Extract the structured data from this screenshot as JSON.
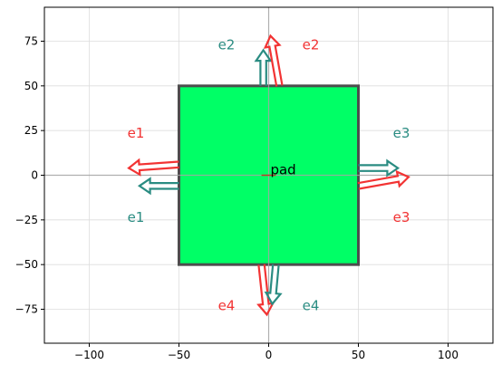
{
  "chart_data": {
    "type": "diagram-plot",
    "title": "",
    "xlabel": "",
    "ylabel": "",
    "xlim": [
      -125,
      125
    ],
    "ylim": [
      -94,
      94
    ],
    "x_ticks": [
      -100,
      -50,
      0,
      50,
      100
    ],
    "y_ticks": [
      -75,
      -50,
      -25,
      0,
      25,
      50,
      75
    ],
    "grid": true,
    "pad": {
      "label": "pad",
      "x_range": [
        -50,
        50
      ],
      "y_range": [
        -50,
        50
      ],
      "fill": "#00ff66",
      "edge": "#4d4d4d"
    },
    "colors": {
      "teal": "#2a8c82",
      "red": "#f23333",
      "axis_line": "#a6a6a6",
      "grid": "#dddddd"
    },
    "arrows": [
      {
        "label": "e1",
        "color": "teal",
        "direction": "left",
        "base": [
          -50,
          -6
        ],
        "tip": [
          -72,
          -6
        ],
        "label_pos": [
          -74,
          -23.5
        ]
      },
      {
        "label": "e1",
        "color": "red",
        "direction": "left",
        "base": [
          -50,
          6
        ],
        "tip": [
          -78,
          4
        ],
        "label_pos": [
          -74,
          23.5
        ]
      },
      {
        "label": "e2",
        "color": "teal",
        "direction": "up",
        "base": [
          -3,
          50
        ],
        "tip": [
          -3,
          70
        ],
        "label_pos": [
          -23.5,
          73
        ]
      },
      {
        "label": "e2",
        "color": "red",
        "direction": "up",
        "base": [
          6,
          50
        ],
        "tip": [
          1,
          78
        ],
        "label_pos": [
          23.5,
          73
        ]
      },
      {
        "label": "e3",
        "color": "teal",
        "direction": "right",
        "base": [
          50,
          4
        ],
        "tip": [
          72,
          4
        ],
        "label_pos": [
          74,
          23.5
        ]
      },
      {
        "label": "e3",
        "color": "red",
        "direction": "right",
        "base": [
          50,
          -6
        ],
        "tip": [
          78,
          -1
        ],
        "label_pos": [
          74,
          -23.5
        ]
      },
      {
        "label": "e4",
        "color": "red",
        "direction": "down",
        "base": [
          -4,
          -50
        ],
        "tip": [
          -1,
          -78
        ],
        "label_pos": [
          -23.5,
          -73
        ]
      },
      {
        "label": "e4",
        "color": "teal",
        "direction": "down",
        "base": [
          4,
          -50
        ],
        "tip": [
          2,
          -72
        ],
        "label_pos": [
          23.5,
          -73
        ]
      }
    ]
  }
}
